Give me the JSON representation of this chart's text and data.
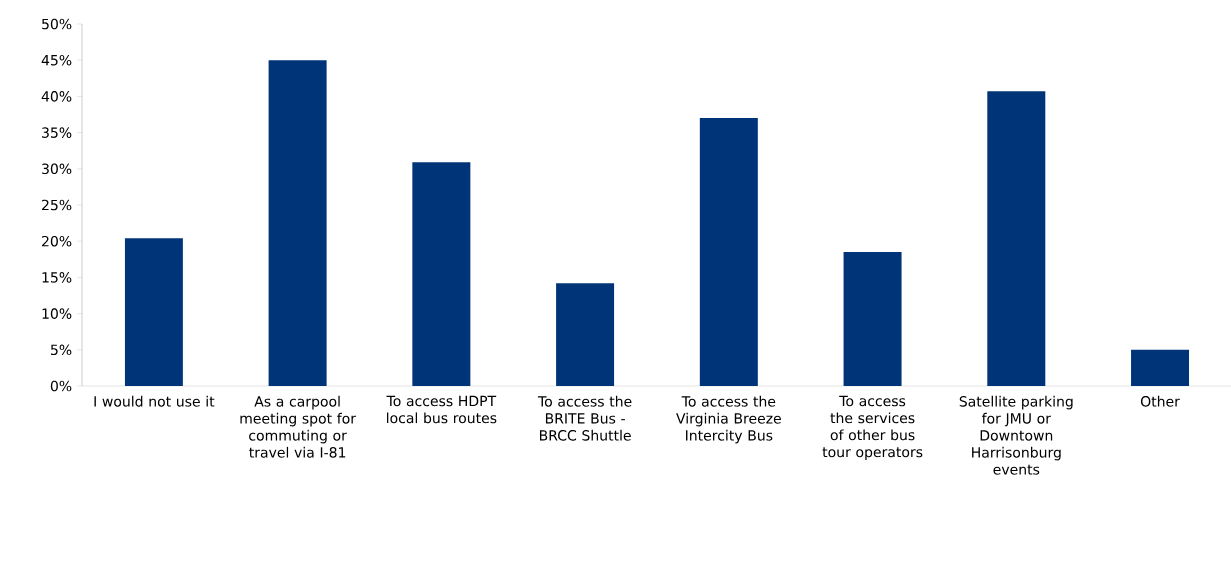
{
  "chart_data": {
    "type": "bar",
    "categories": [
      "I would not use it",
      "As a carpool meeting spot for commuting or travel via I-81",
      "To access HDPT local bus routes",
      "To access the BRITE Bus - BRCC Shuttle",
      "To access the Virginia Breeze Intercity Bus",
      "To access the services of other bus tour operators",
      "Satellite parking for JMU or Downtown Harrisonburg events",
      "Other"
    ],
    "values": [
      20.4,
      45.0,
      30.9,
      14.2,
      37.0,
      18.5,
      40.7,
      5.0
    ],
    "color": "#003478",
    "ylim": [
      0,
      50
    ],
    "yticks": [
      {
        "value": 0,
        "label": "0%"
      },
      {
        "value": 5,
        "label": "5%"
      },
      {
        "value": 10,
        "label": "10%"
      },
      {
        "value": 15,
        "label": "15%"
      },
      {
        "value": 20,
        "label": "20%"
      },
      {
        "value": 25,
        "label": "25%"
      },
      {
        "value": 30,
        "label": "30%"
      },
      {
        "value": 35,
        "label": "35%"
      },
      {
        "value": 40,
        "label": "40%"
      },
      {
        "value": 45,
        "label": "45%"
      },
      {
        "value": 50,
        "label": "50%"
      }
    ]
  }
}
